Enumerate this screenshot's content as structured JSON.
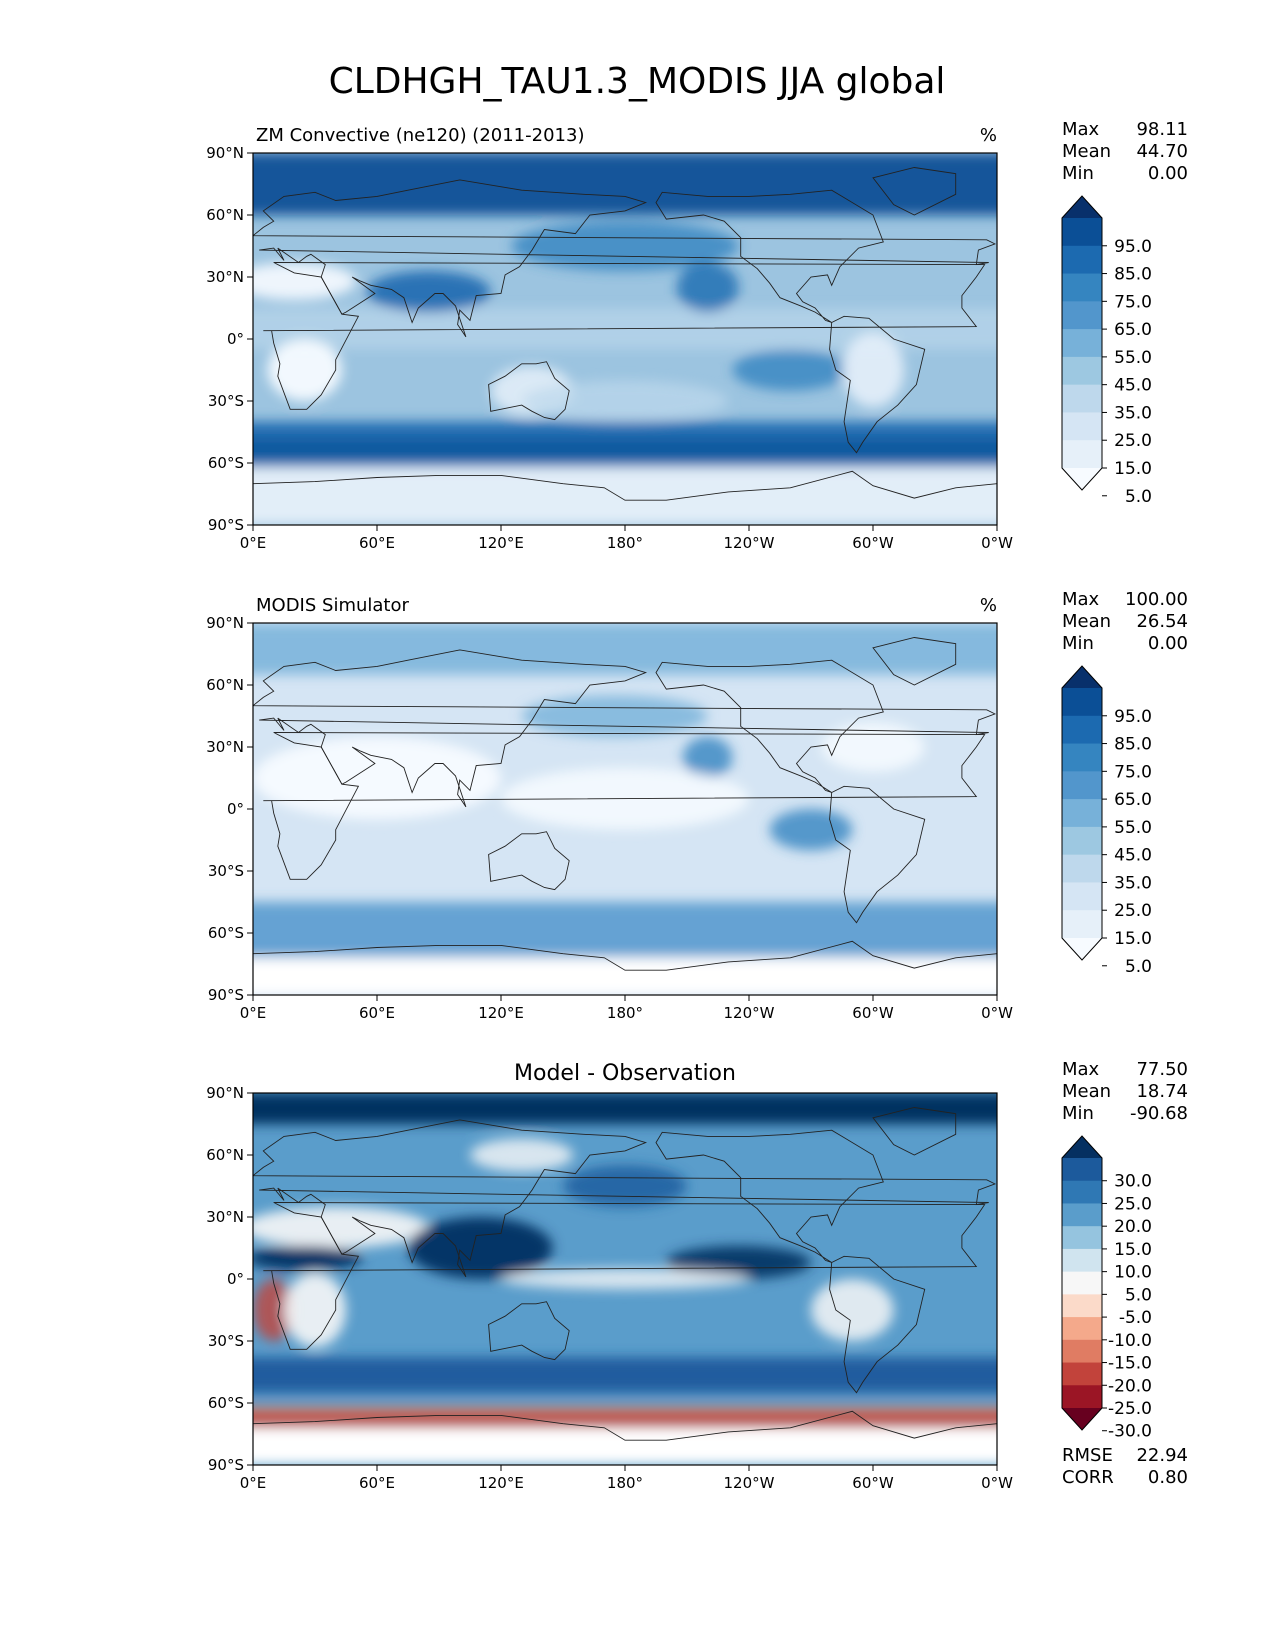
{
  "title": "CLDHGH_TAU1.3_MODIS JJA global",
  "x_ticks": [
    "0°E",
    "60°E",
    "120°E",
    "180°",
    "120°W",
    "60°W",
    "0°W"
  ],
  "y_ticks": [
    "90°N",
    "60°N",
    "30°N",
    "0°",
    "30°S",
    "60°S",
    "90°S"
  ],
  "chart_data": [
    {
      "type": "heatmap",
      "title": "ZM Convective (ne120) (2011-2013)",
      "units": "%",
      "stats": {
        "max_label": "Max",
        "max": "98.11",
        "mean_label": "Mean",
        "mean": "44.70",
        "min_label": "Min",
        "min": "0.00"
      },
      "colorbar": {
        "ticks": [
          "95.0",
          "85.0",
          "75.0",
          "65.0",
          "55.0",
          "45.0",
          "35.0",
          "25.0",
          "15.0",
          "5.0"
        ],
        "colors": [
          "#08306b",
          "#0b4f96",
          "#1c6ab0",
          "#3585c0",
          "#5296cc",
          "#77b1d9",
          "#9dc8e1",
          "#bed8ec",
          "#d5e5f4",
          "#e6f0f9",
          "#f7fbff"
        ]
      },
      "field": {
        "background": "#9cc4e0",
        "features": [
          {
            "shape": "band",
            "lat": [
              90,
              60
            ],
            "color": "#0b4f96",
            "opacity": 0.95
          },
          {
            "shape": "band",
            "lat": [
              -40,
              -62
            ],
            "color": "#1c6ab0",
            "opacity": 0.95
          },
          {
            "shape": "band",
            "lat": [
              -48,
              -58
            ],
            "color": "#0b4f96",
            "opacity": 0.7
          },
          {
            "shape": "band",
            "lat": [
              -62,
              -90
            ],
            "color": "#e6f0f9",
            "opacity": 0.95
          },
          {
            "shape": "band",
            "lat": [
              15,
              -5
            ],
            "color": "#bed8ec",
            "opacity": 0.6
          },
          {
            "shape": "blob",
            "lon": 180,
            "lat": 45,
            "rlon": 55,
            "rlat": 12,
            "color": "#3585c0",
            "opacity": 0.8
          },
          {
            "shape": "blob",
            "lon": 220,
            "lat": 25,
            "rlon": 15,
            "rlat": 12,
            "color": "#1c6ab0",
            "opacity": 0.8
          },
          {
            "shape": "blob",
            "lon": 85,
            "lat": 23,
            "rlon": 30,
            "rlat": 10,
            "color": "#1c6ab0",
            "opacity": 0.9
          },
          {
            "shape": "blob",
            "lon": 260,
            "lat": -15,
            "rlon": 28,
            "rlat": 10,
            "color": "#3585c0",
            "opacity": 0.8
          },
          {
            "shape": "blob",
            "lon": 25,
            "lat": -15,
            "rlon": 18,
            "rlat": 15,
            "color": "#f7fbff",
            "opacity": 0.95
          },
          {
            "shape": "blob",
            "lon": 300,
            "lat": -15,
            "rlon": 15,
            "rlat": 18,
            "color": "#e6f0f9",
            "opacity": 0.9
          },
          {
            "shape": "blob",
            "lon": 20,
            "lat": 28,
            "rlon": 30,
            "rlat": 9,
            "color": "#f7fbff",
            "opacity": 0.9
          },
          {
            "shape": "blob",
            "lon": 135,
            "lat": -25,
            "rlon": 20,
            "rlat": 12,
            "color": "#e6f0f9",
            "opacity": 0.85
          },
          {
            "shape": "blob",
            "lon": 180,
            "lat": -30,
            "rlon": 50,
            "rlat": 10,
            "color": "#bed8ec",
            "opacity": 0.7
          }
        ]
      }
    },
    {
      "type": "heatmap",
      "title": "MODIS Simulator",
      "units": "%",
      "stats": {
        "max_label": "Max",
        "max": "100.00",
        "mean_label": "Mean",
        "mean": "26.54",
        "min_label": "Min",
        "min": "0.00"
      },
      "colorbar": {
        "ticks": [
          "95.0",
          "85.0",
          "75.0",
          "65.0",
          "55.0",
          "45.0",
          "35.0",
          "25.0",
          "15.0",
          "5.0"
        ],
        "colors": [
          "#08306b",
          "#0b4f96",
          "#1c6ab0",
          "#3585c0",
          "#5296cc",
          "#77b1d9",
          "#9dc8e1",
          "#bed8ec",
          "#d5e5f4",
          "#e6f0f9",
          "#f7fbff"
        ]
      },
      "field": {
        "background": "#d5e5f4",
        "features": [
          {
            "shape": "band",
            "lat": [
              90,
              65
            ],
            "color": "#77b1d9",
            "opacity": 0.85
          },
          {
            "shape": "band",
            "lat": [
              -45,
              -72
            ],
            "color": "#5296cc",
            "opacity": 0.85
          },
          {
            "shape": "band",
            "lat": [
              -72,
              -90
            ],
            "color": "#ffffff",
            "opacity": 1.0
          },
          {
            "shape": "blob",
            "lon": 175,
            "lat": 45,
            "rlon": 45,
            "rlat": 10,
            "color": "#77b1d9",
            "opacity": 0.8
          },
          {
            "shape": "blob",
            "lon": 220,
            "lat": 25,
            "rlon": 12,
            "rlat": 10,
            "color": "#3585c0",
            "opacity": 0.8
          },
          {
            "shape": "blob",
            "lon": 270,
            "lat": -10,
            "rlon": 20,
            "rlat": 10,
            "color": "#3585c0",
            "opacity": 0.8
          },
          {
            "shape": "blob",
            "lon": 60,
            "lat": 15,
            "rlon": 60,
            "rlat": 20,
            "color": "#f7fbff",
            "opacity": 0.95
          },
          {
            "shape": "blob",
            "lon": 180,
            "lat": 5,
            "rlon": 60,
            "rlat": 15,
            "color": "#f7fbff",
            "opacity": 0.85
          },
          {
            "shape": "blob",
            "lon": 300,
            "lat": 30,
            "rlon": 25,
            "rlat": 12,
            "color": "#f7fbff",
            "opacity": 0.85
          }
        ]
      }
    },
    {
      "type": "heatmap",
      "title": "Model - Observation",
      "units": "",
      "stats": {
        "max_label": "Max",
        "max": "77.50",
        "mean_label": "Mean",
        "mean": "18.74",
        "min_label": "Min",
        "min": "-90.68",
        "rmse_label": "RMSE",
        "rmse": "22.94",
        "corr_label": "CORR",
        "corr": "0.80"
      },
      "colorbar": {
        "ticks": [
          "30.0",
          "25.0",
          "20.0",
          "15.0",
          "10.0",
          "5.0",
          "-5.0",
          "-10.0",
          "-15.0",
          "-20.0",
          "-25.0",
          "-30.0"
        ],
        "colors": [
          "#053061",
          "#1c5a9c",
          "#2f78b4",
          "#5a9dcb",
          "#95c4df",
          "#d0e4ef",
          "#f7f7f7",
          "#fbdac9",
          "#f4a98b",
          "#e07c63",
          "#c2433b",
          "#9b1525",
          "#67001f"
        ]
      },
      "field": {
        "background": "#5a9dcb",
        "features": [
          {
            "shape": "band",
            "lat": [
              90,
              75
            ],
            "color": "#053061",
            "opacity": 1.0
          },
          {
            "shape": "band",
            "lat": [
              -38,
              -55
            ],
            "color": "#1c5a9c",
            "opacity": 0.95
          },
          {
            "shape": "band",
            "lat": [
              -62,
              -72
            ],
            "color": "#e07c63",
            "opacity": 0.95
          },
          {
            "shape": "band",
            "lat": [
              -66,
              -71
            ],
            "color": "#9b1525",
            "opacity": 0.8
          },
          {
            "shape": "band",
            "lat": [
              -72,
              -90
            ],
            "color": "#ffffff",
            "opacity": 1.0
          },
          {
            "shape": "blob",
            "lon": 40,
            "lat": 25,
            "rlon": 45,
            "rlat": 10,
            "color": "#f7f7f7",
            "opacity": 0.9
          },
          {
            "shape": "blob",
            "lon": 25,
            "lat": 10,
            "rlon": 28,
            "rlat": 6,
            "color": "#053061",
            "opacity": 0.95
          },
          {
            "shape": "blob",
            "lon": 110,
            "lat": 15,
            "rlon": 35,
            "rlat": 15,
            "color": "#053061",
            "opacity": 0.95
          },
          {
            "shape": "blob",
            "lon": 235,
            "lat": 8,
            "rlon": 35,
            "rlat": 8,
            "color": "#053061",
            "opacity": 0.9
          },
          {
            "shape": "blob",
            "lon": 180,
            "lat": 0,
            "rlon": 60,
            "rlat": 5,
            "color": "#f7f7f7",
            "opacity": 0.8
          },
          {
            "shape": "blob",
            "lon": 10,
            "lat": -15,
            "rlon": 10,
            "rlat": 15,
            "color": "#c2433b",
            "opacity": 0.8
          },
          {
            "shape": "blob",
            "lon": 30,
            "lat": -15,
            "rlon": 15,
            "rlat": 18,
            "color": "#f7f7f7",
            "opacity": 0.9
          },
          {
            "shape": "blob",
            "lon": 290,
            "lat": -15,
            "rlon": 20,
            "rlat": 15,
            "color": "#f7f7f7",
            "opacity": 0.85
          },
          {
            "shape": "blob",
            "lon": 130,
            "lat": 60,
            "rlon": 25,
            "rlat": 8,
            "color": "#f7f7f7",
            "opacity": 0.8
          },
          {
            "shape": "blob",
            "lon": 180,
            "lat": 45,
            "rlon": 30,
            "rlat": 10,
            "color": "#1c5a9c",
            "opacity": 0.8
          }
        ]
      }
    }
  ]
}
